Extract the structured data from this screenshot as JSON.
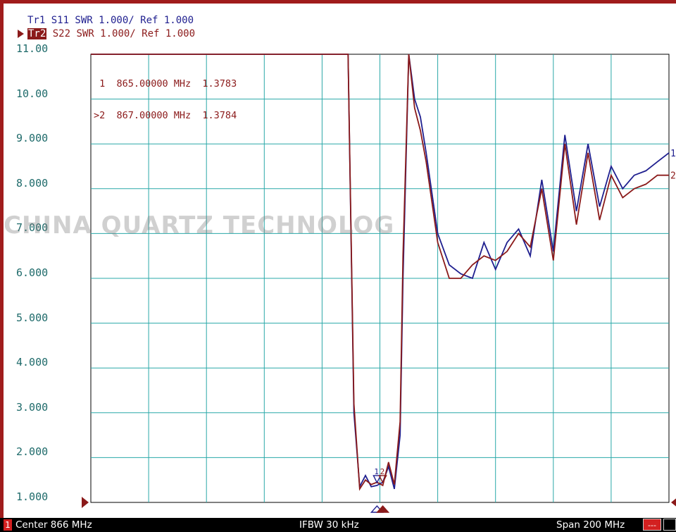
{
  "header": {
    "tr1": "Tr1 S11 SWR 1.000/ Ref 1.000",
    "tr2_tag": "Tr2",
    "tr2": " S22 SWR 1.000/ Ref 1.000"
  },
  "marker_table": {
    "row1": " 1  865.00000 MHz  1.3783",
    "row2": ">2  867.00000 MHz  1.3784"
  },
  "watermark": "CHINA QUARTZ TECHNOLOG",
  "footer": {
    "channel": "1",
    "center": "Center 866 MHz",
    "ifbw": "IFBW 30 kHz",
    "span": "Span 200 MHz",
    "status": "---"
  },
  "colors": {
    "tr1": "#1f1f8f",
    "tr2": "#8b1a1a",
    "grid": "#2aa8a8",
    "tick_text": "#1f6b6b"
  },
  "chart_data": {
    "type": "line",
    "title": "",
    "xlabel": "",
    "ylabel": "",
    "x_range_mhz": [
      766,
      966
    ],
    "ylim": [
      1.0,
      11.0
    ],
    "y_ticks": [
      "11.00",
      "10.00",
      "9.000",
      "8.000",
      "7.000",
      "6.000",
      "5.000",
      "4.000",
      "3.000",
      "2.000",
      "1.000"
    ],
    "grid": true,
    "series": [
      {
        "name": "Tr1 S11",
        "x": [
          766,
          786,
          806,
          826,
          846,
          855,
          857,
          859,
          861,
          863,
          865,
          867,
          869,
          871,
          873,
          874,
          876,
          878,
          880,
          882,
          886,
          890,
          894,
          898,
          902,
          906,
          910,
          914,
          918,
          922,
          926,
          930,
          934,
          938,
          942,
          946,
          950,
          954,
          958,
          962,
          966
        ],
        "values": [
          11.0,
          11.0,
          11.0,
          11.0,
          11.0,
          11.0,
          3.0,
          1.35,
          1.6,
          1.35,
          1.3783,
          1.45,
          1.8,
          1.3,
          2.5,
          6.0,
          11.0,
          10.0,
          9.6,
          8.8,
          7.0,
          6.3,
          6.1,
          6.0,
          6.8,
          6.2,
          6.8,
          7.1,
          6.5,
          8.2,
          6.6,
          9.2,
          7.5,
          9.0,
          7.6,
          8.5,
          8.0,
          8.3,
          8.4,
          8.6,
          8.8
        ]
      },
      {
        "name": "Tr2 S22",
        "x": [
          766,
          786,
          806,
          826,
          846,
          855,
          857,
          859,
          861,
          863,
          865,
          867,
          869,
          871,
          873,
          874,
          876,
          878,
          880,
          882,
          886,
          890,
          894,
          898,
          902,
          906,
          910,
          914,
          918,
          922,
          926,
          930,
          934,
          938,
          942,
          946,
          950,
          954,
          958,
          962,
          966
        ],
        "values": [
          11.0,
          11.0,
          11.0,
          11.0,
          11.0,
          11.0,
          3.2,
          1.3,
          1.5,
          1.4,
          1.45,
          1.3784,
          1.9,
          1.4,
          2.8,
          6.5,
          11.0,
          9.8,
          9.3,
          8.6,
          6.8,
          6.0,
          6.0,
          6.3,
          6.5,
          6.4,
          6.6,
          7.0,
          6.7,
          8.0,
          6.4,
          9.0,
          7.2,
          8.8,
          7.3,
          8.3,
          7.8,
          8.0,
          8.1,
          8.3,
          8.3
        ]
      }
    ],
    "markers": [
      {
        "id": "1",
        "x": 865.0,
        "value": 1.3783
      },
      {
        "id": "2",
        "x": 867.0,
        "value": 1.3784
      }
    ],
    "trace_end_labels": [
      "1",
      "2"
    ]
  }
}
